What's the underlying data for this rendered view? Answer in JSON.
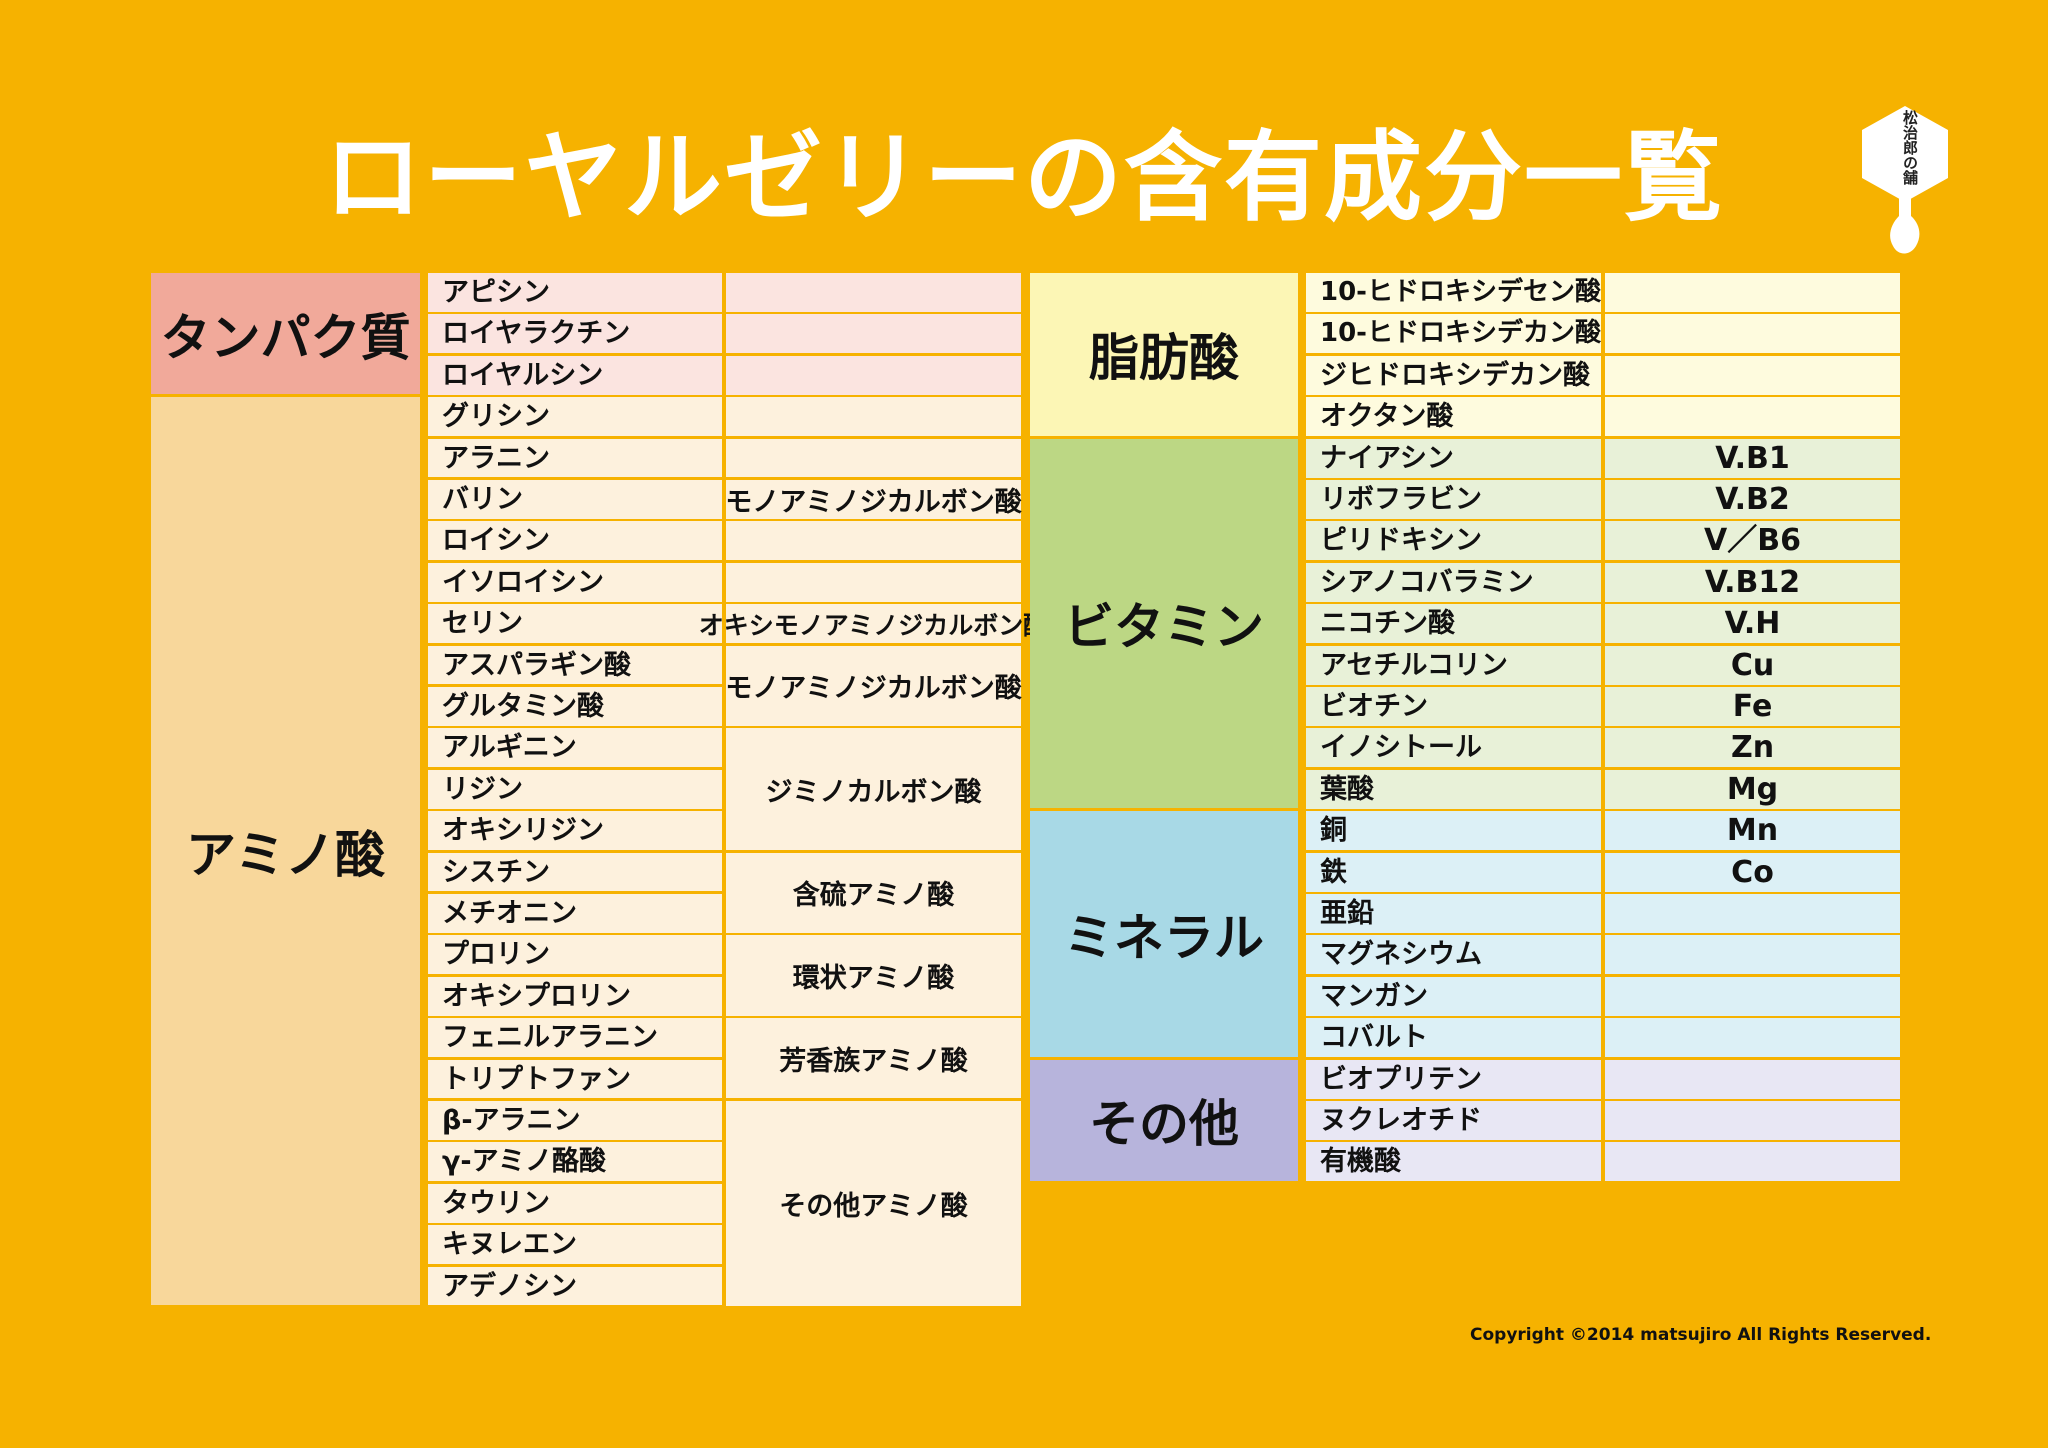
{
  "title": "ローヤルゼリーの含有成分一覧",
  "logo_text": "松治郎の舗",
  "copyright": "Copyright ©2014 matsujiro All Rights Reserved.",
  "colors": {
    "background": "#f6b200",
    "protein_header": "#f1a99a",
    "protein_row": "#fbe4e0",
    "amino_header": "#f8d79b",
    "amino_row": "#fdf1dd",
    "fatty_header": "#fcf6b5",
    "fatty_row": "#fefbde",
    "vitamin_header": "#bcd784",
    "vitamin_row": "#e8f1d8",
    "mineral_header": "#a8d9e6",
    "mineral_row": "#dcf0f6",
    "other_header": "#b7b4dc",
    "other_row": "#e8e7f4"
  },
  "left_table": {
    "groups": [
      {
        "label": "タンパク質",
        "items": [
          "アピシン",
          "ロイヤラクチン",
          "ロイヤルシン"
        ],
        "subgroups": []
      },
      {
        "label": "アミノ酸",
        "items": [
          "グリシン",
          "アラニン",
          "バリン",
          "ロイシン",
          "イソロイシン",
          "セリン",
          "アスパラギン酸",
          "グルタミン酸",
          "アルギニン",
          "リジン",
          "オキシリジン",
          "シスチン",
          "メチオニン",
          "プロリン",
          "オキシプロリン",
          "フェニルアラニン",
          "トリプトファン",
          "β-アラニン",
          "γ-アミノ酪酸",
          "タウリン",
          "キヌレエン",
          "アデノシン"
        ],
        "subgroups": [
          {
            "label": "",
            "rows": 2
          },
          {
            "label": "モノアミノジカルボン酸",
            "rows": 1
          },
          {
            "label": "",
            "rows": 2
          },
          {
            "label": "オキシモノアミノジカルボン酸",
            "rows": 1
          },
          {
            "label": "モノアミノジカルボン酸",
            "rows": 2
          },
          {
            "label": "ジミノカルボン酸",
            "rows": 3
          },
          {
            "label": "含硫アミノ酸",
            "rows": 2
          },
          {
            "label": "環状アミノ酸",
            "rows": 2
          },
          {
            "label": "芳香族アミノ酸",
            "rows": 2
          },
          {
            "label": "その他アミノ酸",
            "rows": 5
          }
        ]
      }
    ]
  },
  "right_table": {
    "groups": [
      {
        "label": "脂肪酸",
        "items": [
          "10-ヒドロキシデセン酸",
          "10-ヒドロキシデカン酸",
          "ジヒドロキシデカン酸",
          "オクタン酸"
        ],
        "values": [
          "",
          "",
          "",
          ""
        ]
      },
      {
        "label": "ビタミン",
        "items": [
          "ナイアシン",
          "リボフラビン",
          "ピリドキシン",
          "シアノコバラミン",
          "ニコチン酸",
          "アセチルコリン",
          "ビオチン",
          "イノシトール",
          "葉酸"
        ],
        "values": [
          "V.B1",
          "V.B2",
          "V／B6",
          "V.B12",
          "V.H",
          "Cu",
          "Fe",
          "Zn",
          "Mg"
        ]
      },
      {
        "label": "ミネラル",
        "items": [
          "銅",
          "鉄",
          "亜鉛",
          "マグネシウム",
          "マンガン",
          "コバルト"
        ],
        "values": [
          "Mn",
          "Co",
          "",
          "",
          "",
          ""
        ]
      },
      {
        "label": "その他",
        "items": [
          "ビオプリテン",
          "ヌクレオチド",
          "有機酸"
        ],
        "values": [
          "",
          "",
          ""
        ]
      }
    ]
  }
}
